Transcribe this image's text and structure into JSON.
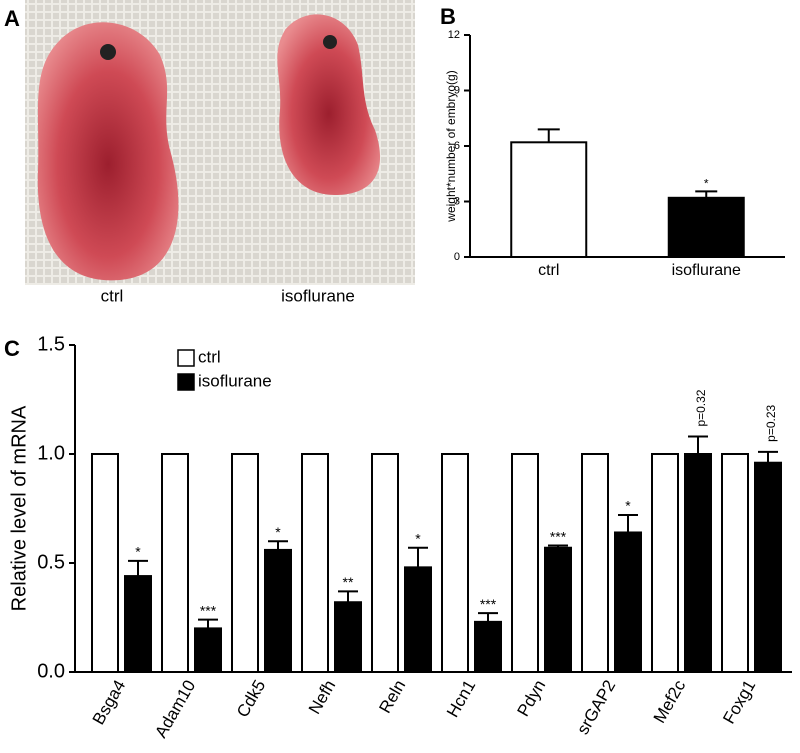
{
  "photo": {
    "panel_label": "A",
    "captions": [
      "ctrl",
      "isoflurane"
    ]
  },
  "chart_data": [
    {
      "type": "bar",
      "panel_label": "B",
      "ylabel": "weight*number of embryo(g)",
      "categories": [
        "ctrl",
        "isoflurane"
      ],
      "values": [
        6.2,
        3.2
      ],
      "errors": [
        0.7,
        0.35
      ],
      "colors": [
        "#ffffff",
        "#000000"
      ],
      "significance": [
        null,
        "*"
      ],
      "ylim": [
        0,
        12
      ],
      "yticks": [
        0,
        3,
        6,
        9,
        12
      ]
    },
    {
      "type": "grouped-bar",
      "panel_label": "C",
      "ylabel": "Relative level of mRNA",
      "categories": [
        "Bsga4",
        "Adam10",
        "Cdk5",
        "Nefh",
        "Reln",
        "Hcn1",
        "Pdyn",
        "srGAP2",
        "Mef2c",
        "Foxg1"
      ],
      "series": [
        {
          "name": "ctrl",
          "color": "#ffffff",
          "values": [
            1.0,
            1.0,
            1.0,
            1.0,
            1.0,
            1.0,
            1.0,
            1.0,
            1.0,
            1.0
          ]
        },
        {
          "name": "isoflurane",
          "color": "#000000",
          "values": [
            0.44,
            0.2,
            0.56,
            0.32,
            0.48,
            0.23,
            0.57,
            0.64,
            1.0,
            0.96
          ],
          "errors": [
            0.07,
            0.04,
            0.04,
            0.05,
            0.09,
            0.04,
            0.01,
            0.08,
            0.08,
            0.05
          ],
          "significance": [
            "*",
            "***",
            "*",
            "**",
            "*",
            "***",
            "***",
            "*",
            "p=0.32",
            "p=0.23"
          ]
        }
      ],
      "ylim": [
        0,
        1.5
      ],
      "yticks": [
        {
          "value": 0,
          "label": "0.0"
        },
        0.5,
        {
          "value": 1,
          "label": "1.0"
        },
        1.5
      ]
    }
  ]
}
